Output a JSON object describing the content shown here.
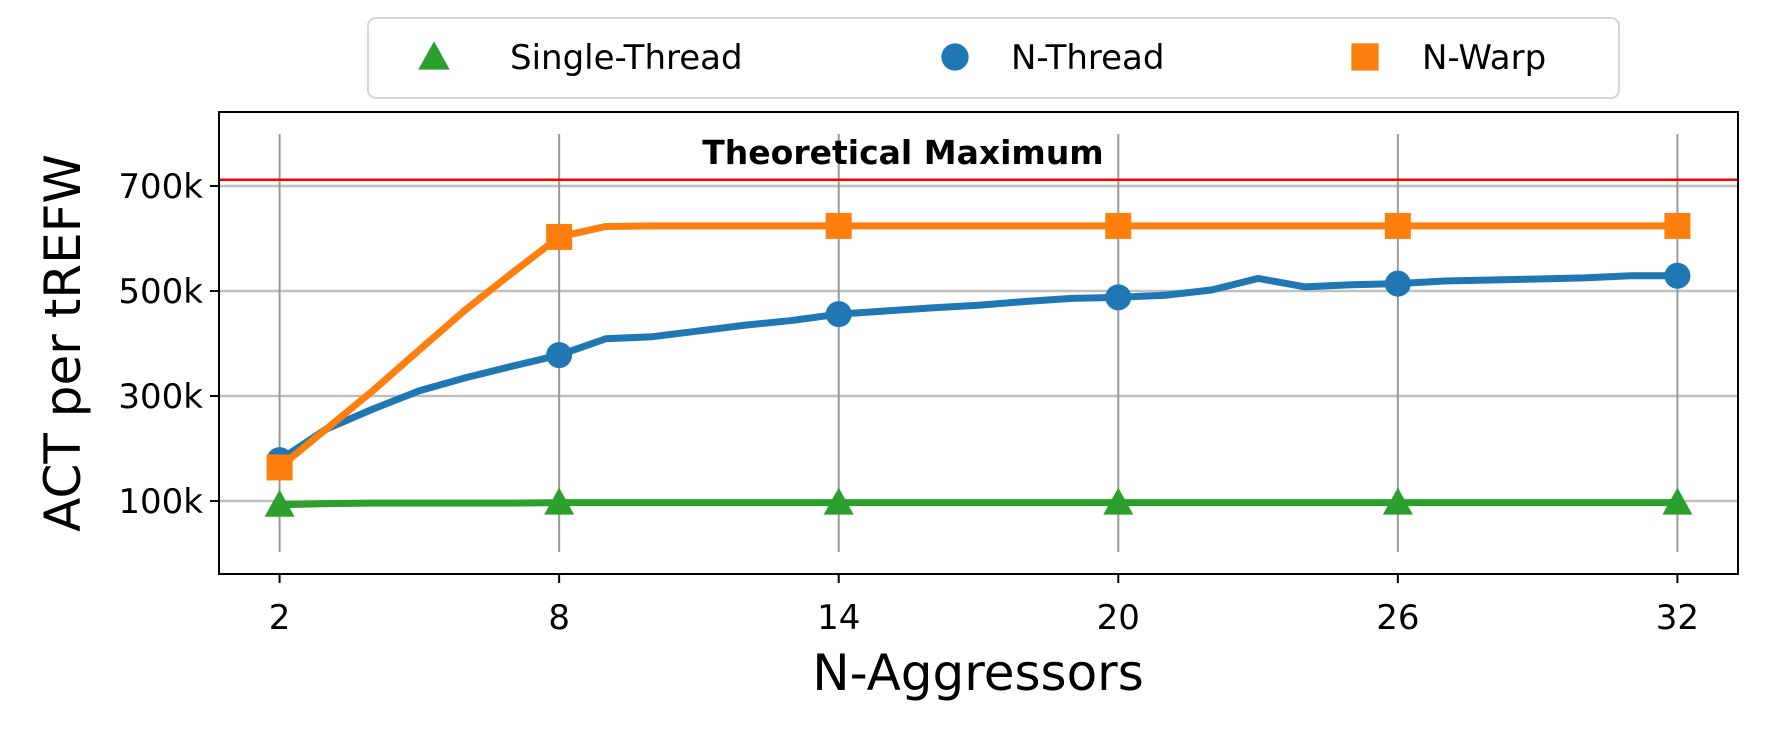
{
  "chart_data": {
    "type": "line",
    "title": "",
    "xlabel": "N-Aggressors",
    "ylabel": "ACT per tREFW",
    "xlim": [
      0.7,
      33.3
    ],
    "ylim": [
      -39000,
      841000
    ],
    "x_ticks": [
      2,
      8,
      14,
      20,
      26,
      32
    ],
    "x_tick_labels": [
      "2",
      "8",
      "14",
      "20",
      "26",
      "32"
    ],
    "y_ticks": [
      100000,
      300000,
      500000,
      700000
    ],
    "y_tick_labels": [
      "100k",
      "300k",
      "500k",
      "700k"
    ],
    "grid": true,
    "legend_placement": "top-center-outside",
    "x": [
      2,
      3,
      4,
      5,
      6,
      7,
      8,
      9,
      10,
      11,
      12,
      13,
      14,
      15,
      16,
      17,
      18,
      19,
      20,
      21,
      22,
      23,
      24,
      25,
      26,
      27,
      28,
      29,
      30,
      31,
      32
    ],
    "marker_x": [
      2,
      8,
      14,
      20,
      26,
      32
    ],
    "series": [
      {
        "name": "Single-Thread",
        "color": "#2ca02c",
        "marker": "triangle",
        "values": [
          93000,
          95000,
          96000,
          96000,
          96000,
          96000,
          97000,
          97000,
          97000,
          97000,
          97000,
          97000,
          97000,
          97000,
          97000,
          97000,
          97000,
          97000,
          97000,
          97000,
          97000,
          97000,
          97000,
          97000,
          97000,
          97000,
          97000,
          97000,
          97000,
          97000,
          97000
        ]
      },
      {
        "name": "N-Thread",
        "color": "#1f77b4",
        "marker": "circle",
        "values": [
          178000,
          237000,
          275000,
          310000,
          335000,
          357000,
          378000,
          409000,
          413000,
          424000,
          435000,
          444000,
          456000,
          462000,
          468000,
          473000,
          480000,
          486000,
          488000,
          492000,
          502000,
          524000,
          508000,
          512000,
          514000,
          519000,
          521000,
          523000,
          525000,
          529000,
          529000
        ]
      },
      {
        "name": "N-Warp",
        "color": "#ff7f0e",
        "marker": "square",
        "values": [
          164000,
          237000,
          310000,
          388000,
          465000,
          535000,
          603000,
          623000,
          624000,
          624000,
          624000,
          624000,
          624000,
          624000,
          624000,
          624000,
          624000,
          624000,
          624000,
          624000,
          624000,
          624000,
          624000,
          624000,
          624000,
          624000,
          624000,
          624000,
          624000,
          624000,
          624000
        ]
      }
    ],
    "reference_line": {
      "label": "Theoretical Maximum",
      "value": 712000,
      "color": "#ff0000"
    }
  }
}
